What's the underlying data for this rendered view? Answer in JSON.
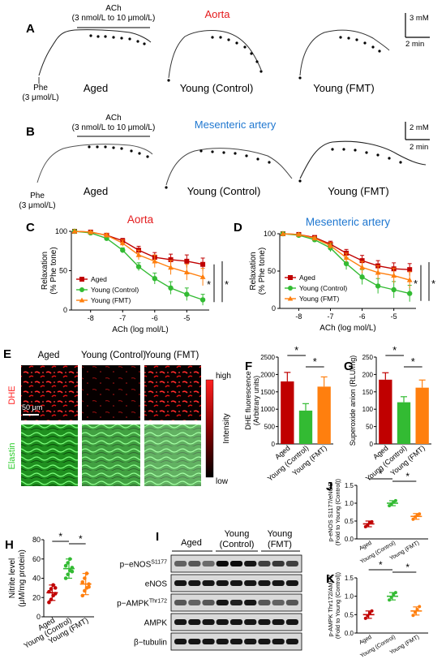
{
  "panels": {
    "A": "A",
    "B": "B",
    "C": "C",
    "D": "D",
    "E": "E",
    "F": "F",
    "G": "G",
    "H": "H",
    "I": "I",
    "J": "J",
    "K": "K"
  },
  "traces": {
    "aorta_title": "Aorta",
    "mesenteric_title": "Mesenteric artery",
    "ach_label": "ACh",
    "ach_range": "(3 nmol/L to 10 μmol/L)",
    "phe_label": "Phe",
    "phe_dose": "(3 μmol/L)",
    "scale_A_y": "3 mM",
    "scale_A_x": "2 min",
    "scale_B_y": "2 mM",
    "scale_B_x": "2 min",
    "group_aged": "Aged",
    "group_young_control": "Young (Control)",
    "group_young_fmt": "Young (FMT)"
  },
  "colors": {
    "aged": "#c00000",
    "young_control": "#33bb33",
    "young_fmt": "#ff7f0e",
    "aorta_title": "#e41a1c",
    "mesenteric_title": "#1f77d0",
    "dhe": "#ff2020",
    "elastin": "#2ecc2e"
  },
  "chart_data": [
    {
      "panel": "C",
      "type": "line",
      "title": "Aorta",
      "xlabel": "ACh (log mol/L)",
      "ylabel": "Relaxation (% Phe tone)",
      "xlim": [
        -8.6,
        -4.3
      ],
      "ylim": [
        0,
        100
      ],
      "xticks": [
        "-8",
        "-7",
        "-6",
        "-5"
      ],
      "yticks": [
        "0",
        "50",
        "100"
      ],
      "x": [
        -8.5,
        -8.0,
        -7.5,
        -7.0,
        -6.5,
        -6.0,
        -5.5,
        -5.0,
        -4.5
      ],
      "series": [
        {
          "name": "Aged",
          "marker": "square",
          "values": [
            100,
            99,
            95,
            88,
            76,
            67,
            64,
            62,
            58
          ],
          "err": [
            0,
            1,
            2,
            3,
            5,
            6,
            7,
            8,
            8
          ]
        },
        {
          "name": "Young (Control)",
          "marker": "circle",
          "values": [
            100,
            98,
            91,
            76,
            55,
            40,
            28,
            20,
            13
          ],
          "err": [
            0,
            1,
            2,
            3,
            5,
            7,
            8,
            8,
            7
          ]
        },
        {
          "name": "Young (FMT)",
          "marker": "triangle",
          "values": [
            100,
            99,
            95,
            85,
            70,
            62,
            54,
            48,
            42
          ],
          "err": [
            0,
            1,
            2,
            4,
            6,
            8,
            9,
            10,
            11
          ]
        }
      ],
      "legend": "lower-left",
      "sig": [
        "*",
        "*"
      ]
    },
    {
      "panel": "D",
      "type": "line",
      "title": "Mesenteric artery",
      "xlabel": "ACh (log mol/L)",
      "ylabel": "Relaxation (% Phe tone)",
      "xlim": [
        -8.6,
        -4.3
      ],
      "ylim": [
        0,
        100
      ],
      "xticks": [
        "-8",
        "-7",
        "-6",
        "-5"
      ],
      "yticks": [
        "0",
        "50",
        "100"
      ],
      "x": [
        -8.5,
        -8.0,
        -7.5,
        -7.0,
        -6.5,
        -6.0,
        -5.5,
        -5.0,
        -4.5
      ],
      "series": [
        {
          "name": "Aged",
          "marker": "square",
          "values": [
            100,
            99,
            95,
            86,
            74,
            64,
            57,
            53,
            52
          ],
          "err": [
            0,
            1,
            2,
            4,
            5,
            7,
            7,
            8,
            8
          ]
        },
        {
          "name": "Young (Control)",
          "marker": "circle",
          "values": [
            100,
            98,
            92,
            81,
            60,
            42,
            30,
            25,
            20
          ],
          "err": [
            0,
            1,
            3,
            5,
            8,
            10,
            10,
            11,
            11
          ]
        },
        {
          "name": "Young (FMT)",
          "marker": "triangle",
          "values": [
            100,
            99,
            94,
            84,
            68,
            55,
            48,
            44,
            38
          ],
          "err": [
            0,
            1,
            2,
            4,
            6,
            8,
            9,
            10,
            11
          ]
        }
      ],
      "legend": "lower-left",
      "sig": [
        "*",
        "*"
      ]
    },
    {
      "panel": "F",
      "type": "bar",
      "ylabel": "DHE fluorescence (Arbitrary units)",
      "ylim": [
        0,
        2500
      ],
      "yticks": [
        "0",
        "500",
        "1000",
        "1500",
        "2000",
        "2500"
      ],
      "categories": [
        "Aged",
        "Young (Control)",
        "Young (FMT)"
      ],
      "values": [
        1800,
        960,
        1650
      ],
      "err": [
        260,
        200,
        280
      ],
      "sig": [
        "*",
        "*"
      ]
    },
    {
      "panel": "G",
      "type": "bar",
      "ylabel": "Superoxide anion (RLU/mg)",
      "ylim": [
        0,
        250
      ],
      "yticks": [
        "0",
        "50",
        "100",
        "150",
        "200",
        "250"
      ],
      "categories": [
        "Aged",
        "Young (Control)",
        "Young (FMT)"
      ],
      "values": [
        185,
        120,
        162
      ],
      "err": [
        20,
        16,
        22
      ],
      "sig": [
        "*",
        "*"
      ]
    },
    {
      "panel": "H",
      "type": "scatter",
      "ylabel": "Nitrite level (μM/mg protein)",
      "ylim": [
        0,
        80
      ],
      "yticks": [
        "0",
        "20",
        "40",
        "60",
        "80"
      ],
      "categories": [
        "Aged",
        "Young (Control)",
        "Young (FMT)"
      ],
      "means": [
        25,
        50,
        34
      ],
      "err": [
        8,
        10,
        11
      ],
      "points": [
        [
          15,
          18,
          22,
          24,
          26,
          29,
          33,
          30
        ],
        [
          40,
          44,
          48,
          51,
          53,
          56,
          60,
          47
        ],
        [
          22,
          27,
          30,
          34,
          36,
          40,
          45,
          31
        ]
      ],
      "sig": [
        "*",
        "*"
      ]
    },
    {
      "panel": "J",
      "type": "scatter",
      "ylabel": "p-eNOS S1177/eNOS (Fold to Young (Control))",
      "ylim": [
        0,
        1.5
      ],
      "yticks": [
        "0.0",
        "0.5",
        "1.0",
        "1.5"
      ],
      "categories": [
        "Aged",
        "Young (Control)",
        "Young (FMT)"
      ],
      "means": [
        0.42,
        1.0,
        0.63
      ],
      "err": [
        0.08,
        0.07,
        0.08
      ],
      "points": [
        [
          0.34,
          0.4,
          0.45,
          0.48
        ],
        [
          0.93,
          0.98,
          1.03,
          1.07
        ],
        [
          0.55,
          0.62,
          0.66,
          0.7
        ]
      ],
      "sig": [
        "*",
        "*"
      ]
    },
    {
      "panel": "K",
      "type": "scatter",
      "ylabel": "p-AMPK Thr172/AMPK (Fold to Young (Control))",
      "ylim": [
        0,
        1.5
      ],
      "yticks": [
        "0.0",
        "0.5",
        "1.0",
        "1.5"
      ],
      "categories": [
        "Aged",
        "Young (Control)",
        "Young (FMT)"
      ],
      "means": [
        0.5,
        1.0,
        0.6
      ],
      "err": [
        0.1,
        0.1,
        0.11
      ],
      "points": [
        [
          0.4,
          0.47,
          0.54,
          0.6
        ],
        [
          0.9,
          0.97,
          1.05,
          1.1
        ],
        [
          0.48,
          0.56,
          0.64,
          0.72
        ]
      ],
      "sig": [
        "*",
        "*"
      ]
    }
  ],
  "imaging": {
    "row_dhe": "DHE",
    "row_elastin": "Elastin",
    "scale_bar": "50 μm",
    "intensity_label": "Intensity",
    "intensity_high": "high",
    "intensity_low": "low"
  },
  "blot": {
    "header_aged": "Aged",
    "header_young_control_1": "Young",
    "header_young_control_2": "(Control)",
    "header_young_fmt_1": "Young",
    "header_young_fmt_2": "(FMT)",
    "rows": [
      "p−eNOS S1177",
      "eNOS",
      "p−AMPK Thr172",
      "AMPK",
      "β−tubulin"
    ]
  }
}
